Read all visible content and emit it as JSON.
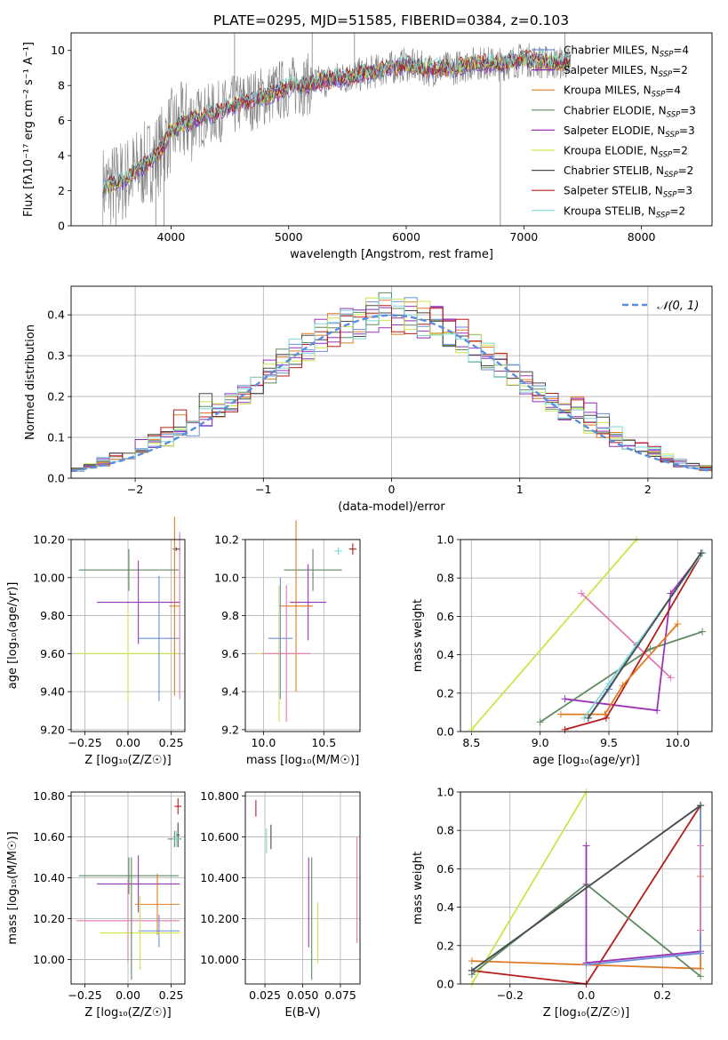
{
  "figure": {
    "title": "PLATE=0295, MJD=51585, FIBERID=0384, z=0.103"
  },
  "colors": {
    "Chabrier MILES": "#6a8fd6",
    "Salpeter MILES": "#8b2fb0",
    "Kroupa MILES": "#e07b22",
    "Chabrier ELODIE": "#5e8a62",
    "Salpeter ELODIE": "#9b35b8",
    "Kroupa ELODIE": "#cfe34a",
    "Chabrier STELIB": "#4a4a4a",
    "Salpeter STELIB": "#b51c1c",
    "Kroupa STELIB": "#7dd6d6",
    "pink": "#e07ab4",
    "spectrum": "#808080",
    "normal": "#5b8ee0"
  },
  "chart_data": [
    {
      "id": "spectrum",
      "type": "line",
      "title": "PLATE=0295, MJD=51585, FIBERID=0384, z=0.103",
      "xlabel": "wavelength [Angstrom, rest frame]",
      "ylabel": "Flux [fλ10⁻¹⁷ erg cm⁻² s⁻¹ A⁻¹]",
      "xlim": [
        3150,
        8600
      ],
      "ylim": [
        0,
        11
      ],
      "xticks": [
        4000,
        5000,
        6000,
        7000,
        8000
      ],
      "yticks": [
        0,
        2,
        4,
        6,
        8,
        10
      ],
      "grid": false,
      "legend_position": "upper right",
      "legend": [
        "Chabrier MILES, N_SSP=4",
        "Salpeter MILES, N_SSP=2",
        "Kroupa MILES, N_SSP=4",
        "Chabrier ELODIE, N_SSP=3",
        "Salpeter ELODIE, N_SSP=3",
        "Kroupa ELODIE, N_SSP=2",
        "Chabrier STELIB, N_SSP=2",
        "Salpeter STELIB, N_SSP=3",
        "Kroupa STELIB, N_SSP=2"
      ],
      "legend_colors": [
        "#6a8fd6",
        "#8b2fb0",
        "#e07b22",
        "#5e8a62",
        "#9b35b8",
        "#cfe34a",
        "#4a4a4a",
        "#b51c1c",
        "#7dd6d6"
      ],
      "data_wavelength_range": [
        3420,
        7400
      ],
      "model_continuum": {
        "x": [
          3420,
          3500,
          3600,
          3700,
          3800,
          3900,
          4000,
          4100,
          4200,
          4400,
          4600,
          4800,
          5000,
          5200,
          5400,
          5600,
          5800,
          6000,
          6200,
          6400,
          6600,
          6800,
          7000,
          7200,
          7400
        ],
        "y": [
          2.2,
          2.3,
          2.6,
          3.1,
          3.6,
          4.2,
          5.4,
          5.8,
          6.1,
          6.5,
          7.0,
          7.4,
          7.9,
          8.1,
          8.4,
          8.6,
          8.9,
          9.2,
          8.9,
          9.0,
          9.3,
          9.2,
          9.5,
          9.3,
          9.3
        ]
      }
    },
    {
      "id": "residuals",
      "type": "line",
      "xlabel": "(data-model)/error",
      "ylabel": "Normed distribution",
      "xlim": [
        -2.5,
        2.5
      ],
      "ylim": [
        0,
        0.47
      ],
      "xticks": [
        -2,
        -1,
        0,
        1,
        2
      ],
      "yticks": [
        0.0,
        0.1,
        0.2,
        0.3,
        0.4
      ],
      "grid": true,
      "legend_position": "upper right",
      "legend": [
        "𝒩(0, 1)"
      ],
      "normal": {
        "mean": 0,
        "sigma": 1
      },
      "bin_width": 0.1
    },
    {
      "id": "Z_age",
      "type": "scatter",
      "xlabel": "Z [log₁₀(Z/Z☉)]",
      "ylabel": "age  [log₁₀(age/yr)]",
      "xlim": [
        -0.33,
        0.33
      ],
      "ylim": [
        9.19,
        10.2
      ],
      "xticks": [
        -0.25,
        0.0,
        0.25
      ],
      "yticks": [
        9.2,
        9.4,
        9.6,
        9.8,
        10.0,
        10.2
      ],
      "grid": true,
      "points": [
        {
          "x": 0.005,
          "xerr": 0.29,
          "y": 10.04,
          "yerr": 0.11,
          "series": "Chabrier ELODIE"
        },
        {
          "x": 0.3,
          "xerr": 0.0,
          "y": 10.15,
          "yerr": 0.01,
          "series": "Salpeter STELIB"
        },
        {
          "x": 0.28,
          "xerr": 0.02,
          "y": 10.15,
          "yerr": 0.01,
          "series": "Chabrier STELIB"
        },
        {
          "x": 0.06,
          "xerr": 0.24,
          "y": 9.87,
          "yerr": 0.22,
          "series": "Salpeter ELODIE"
        },
        {
          "x": 0.0,
          "xerr": 0.3,
          "y": 9.6,
          "yerr": 0.25,
          "series": "Kroupa ELODIE"
        },
        {
          "x": 0.18,
          "xerr": 0.12,
          "y": 9.68,
          "yerr": 0.33,
          "series": "Chabrier MILES"
        },
        {
          "x": 0.27,
          "xerr": 0.03,
          "y": 9.85,
          "yerr": 0.47,
          "series": "Kroupa MILES"
        },
        {
          "x": 0.3,
          "xerr": 0.0,
          "y": 9.8,
          "yerr": 0.44,
          "series": "pink"
        }
      ]
    },
    {
      "id": "mass_age",
      "type": "scatter",
      "xlabel": "mass [log₁₀(M/M☉)]",
      "ylabel": "",
      "xlim": [
        9.85,
        10.8
      ],
      "ylim": [
        9.19,
        10.2
      ],
      "xticks": [
        10.0,
        10.5
      ],
      "yticks": [
        9.2,
        9.4,
        9.6,
        9.8,
        10.0,
        10.2
      ],
      "grid": true,
      "points": [
        {
          "x": 10.41,
          "xerr": 0.24,
          "y": 10.04,
          "yerr": 0.11,
          "series": "Chabrier ELODIE"
        },
        {
          "x": 10.74,
          "xerr": 0.03,
          "y": 10.15,
          "yerr": 0.03,
          "series": "Salpeter STELIB"
        },
        {
          "x": 10.62,
          "xerr": 0.03,
          "y": 10.14,
          "yerr": 0.02,
          "series": "Kroupa STELIB"
        },
        {
          "x": 10.37,
          "xerr": 0.15,
          "y": 9.87,
          "yerr": 0.2,
          "series": "Salpeter ELODIE"
        },
        {
          "x": 10.13,
          "xerr": 0.18,
          "y": 9.6,
          "yerr": 0.36,
          "series": "Kroupa ELODIE"
        },
        {
          "x": 10.27,
          "xerr": 0.14,
          "y": 9.85,
          "yerr": 0.45,
          "series": "Kroupa MILES"
        },
        {
          "x": 10.19,
          "xerr": 0.2,
          "y": 9.6,
          "yerr": 0.36,
          "series": "pink"
        },
        {
          "x": 10.14,
          "xerr": 0.1,
          "y": 9.68,
          "yerr": 0.32,
          "series": "Chabrier MILES"
        }
      ]
    },
    {
      "id": "age_weight",
      "type": "line",
      "xlabel": "age  [log₁₀(age/yr)]",
      "ylabel": "mass weight",
      "xlim": [
        8.42,
        10.25
      ],
      "ylim": [
        0,
        1
      ],
      "xticks": [
        8.5,
        9.0,
        9.5,
        10.0
      ],
      "yticks": [
        0.0,
        0.2,
        0.4,
        0.6,
        0.8,
        1.0
      ],
      "grid": true,
      "series": [
        {
          "series": "Kroupa ELODIE",
          "x": [
            8.5,
            9.7
          ],
          "y": [
            0.01,
            1.0
          ]
        },
        {
          "series": "pink",
          "x": [
            9.3,
            9.95
          ],
          "y": [
            0.72,
            0.28
          ]
        },
        {
          "series": "Chabrier ELODIE",
          "x": [
            9.0,
            9.8,
            10.18
          ],
          "y": [
            0.05,
            0.43,
            0.52
          ]
        },
        {
          "series": "Salpeter ELODIE",
          "x": [
            9.18,
            9.85,
            9.95,
            10.18
          ],
          "y": [
            0.17,
            0.11,
            0.72,
            0.93
          ]
        },
        {
          "series": "Salpeter STELIB",
          "x": [
            9.18,
            9.48,
            10.18
          ],
          "y": [
            0.01,
            0.07,
            0.93
          ]
        },
        {
          "series": "Kroupa MILES",
          "x": [
            9.15,
            9.47,
            9.6,
            10.0
          ],
          "y": [
            0.09,
            0.09,
            0.24,
            0.56
          ]
        },
        {
          "series": "Chabrier MILES",
          "x": [
            9.35,
            9.5,
            9.7,
            10.18
          ],
          "y": [
            0.07,
            0.22,
            0.45,
            0.93
          ]
        },
        {
          "series": "Kroupa STELIB",
          "x": [
            9.32,
            9.5,
            10.18
          ],
          "y": [
            0.07,
            0.25,
            0.93
          ]
        },
        {
          "series": "Chabrier STELIB",
          "x": [
            9.35,
            10.17
          ],
          "y": [
            0.07,
            0.93
          ]
        }
      ]
    },
    {
      "id": "Z_mass",
      "type": "scatter",
      "xlabel": "Z [log₁₀(Z/Z☉)]",
      "ylabel": "mass [log₁₀(M/M☉)]",
      "xlim": [
        -0.33,
        0.33
      ],
      "ylim": [
        9.88,
        10.82
      ],
      "xticks": [
        -0.25,
        0.0,
        0.25
      ],
      "yticks": [
        10.0,
        10.2,
        10.4,
        10.6,
        10.8
      ],
      "grid": true,
      "points": [
        {
          "x": 0.29,
          "xerr": 0.02,
          "y": 10.75,
          "yerr": 0.04,
          "series": "Salpeter STELIB"
        },
        {
          "x": 0.27,
          "xerr": 0.04,
          "y": 10.59,
          "yerr": 0.04,
          "series": "Chabrier ELODIE"
        },
        {
          "x": 0.29,
          "xerr": 0.01,
          "y": 10.61,
          "yerr": 0.06,
          "series": "Chabrier STELIB"
        },
        {
          "x": 0.28,
          "xerr": 0.02,
          "y": 10.59,
          "yerr": 0.04,
          "series": "Kroupa STELIB"
        },
        {
          "x": 0.005,
          "xerr": 0.29,
          "y": 10.41,
          "yerr": 0.09,
          "series": "Chabrier ELODIE"
        },
        {
          "x": 0.06,
          "xerr": 0.24,
          "y": 10.37,
          "yerr": 0.14,
          "series": "Salpeter ELODIE"
        },
        {
          "x": 0.17,
          "xerr": 0.13,
          "y": 10.27,
          "yerr": 0.15,
          "series": "Kroupa MILES"
        },
        {
          "x": 0.0,
          "xerr": 0.3,
          "y": 10.19,
          "yerr": 0.2,
          "series": "pink"
        },
        {
          "x": 0.18,
          "xerr": 0.12,
          "y": 10.14,
          "yerr": 0.08,
          "series": "Chabrier MILES"
        },
        {
          "x": 0.07,
          "xerr": 0.23,
          "y": 10.13,
          "yerr": 0.18,
          "series": "Kroupa ELODIE"
        },
        {
          "x": 0.02,
          "xerr": 0.0,
          "y": 10.2,
          "yerr": 0.3,
          "series": "Chabrier ELODIE"
        }
      ]
    },
    {
      "id": "ebv_mass",
      "type": "scatter",
      "xlabel": "E(B-V)",
      "ylabel": "",
      "xlim": [
        0.012,
        0.088
      ],
      "ylim": [
        9.88,
        10.82
      ],
      "xticks": [
        0.025,
        0.05,
        0.075
      ],
      "yticks": [
        10.0,
        10.2,
        10.4,
        10.6,
        10.8
      ],
      "grid": true,
      "points": [
        {
          "x": 0.019,
          "y": 10.74,
          "yerr": 0.04,
          "series": "Salpeter STELIB"
        },
        {
          "x": 0.026,
          "y": 10.58,
          "yerr": 0.06,
          "series": "Kroupa STELIB"
        },
        {
          "x": 0.029,
          "y": 10.6,
          "yerr": 0.06,
          "series": "Chabrier STELIB"
        },
        {
          "x": 0.054,
          "y": 10.28,
          "yerr": 0.22,
          "series": "Salpeter ELODIE"
        },
        {
          "x": 0.056,
          "y": 10.2,
          "yerr": 0.3,
          "series": "Chabrier ELODIE"
        },
        {
          "x": 0.06,
          "y": 10.13,
          "yerr": 0.15,
          "series": "Kroupa ELODIE"
        },
        {
          "x": 0.086,
          "y": 10.34,
          "yerr": 0.26,
          "series": "pink"
        }
      ]
    },
    {
      "id": "Z_weight",
      "type": "line",
      "xlabel": "Z [log₁₀(Z/Z☉)]",
      "ylabel": "mass weight",
      "xlim": [
        -0.33,
        0.33
      ],
      "ylim": [
        0,
        1
      ],
      "xticks": [
        -0.2,
        0.0,
        0.2
      ],
      "yticks": [
        0.0,
        0.2,
        0.4,
        0.6,
        0.8,
        1.0
      ],
      "grid": true,
      "series": [
        {
          "series": "Kroupa ELODIE",
          "x": [
            -0.3,
            0.0
          ],
          "y": [
            0.0,
            1.0
          ]
        },
        {
          "series": "Salpeter STELIB",
          "x": [
            -0.3,
            0.0,
            0.3
          ],
          "y": [
            0.07,
            0.0,
            0.93
          ]
        },
        {
          "series": "Kroupa MILES",
          "x": [
            -0.3,
            0.0,
            0.3,
            0.3,
            0.3
          ],
          "y": [
            0.12,
            0.1,
            0.08,
            0.28,
            0.56
          ]
        },
        {
          "series": "Chabrier ELODIE",
          "x": [
            -0.3,
            0.0,
            0.3
          ],
          "y": [
            0.05,
            0.52,
            0.04
          ]
        },
        {
          "series": "Salpeter ELODIE",
          "x": [
            0.0,
            0.0,
            0.0,
            0.3
          ],
          "y": [
            0.72,
            0.11,
            0.11,
            0.17
          ]
        },
        {
          "series": "Chabrier MILES",
          "x": [
            0.0,
            0.3,
            0.3
          ],
          "y": [
            0.1,
            0.16,
            0.93
          ]
        },
        {
          "series": "pink",
          "x": [
            0.3,
            0.3
          ],
          "y": [
            0.72,
            0.28
          ]
        },
        {
          "series": "Kroupa STELIB",
          "x": [
            -0.3,
            0.3
          ],
          "y": [
            0.07,
            0.93
          ]
        },
        {
          "series": "Chabrier STELIB",
          "x": [
            -0.3,
            0.3
          ],
          "y": [
            0.07,
            0.93
          ]
        }
      ]
    }
  ]
}
